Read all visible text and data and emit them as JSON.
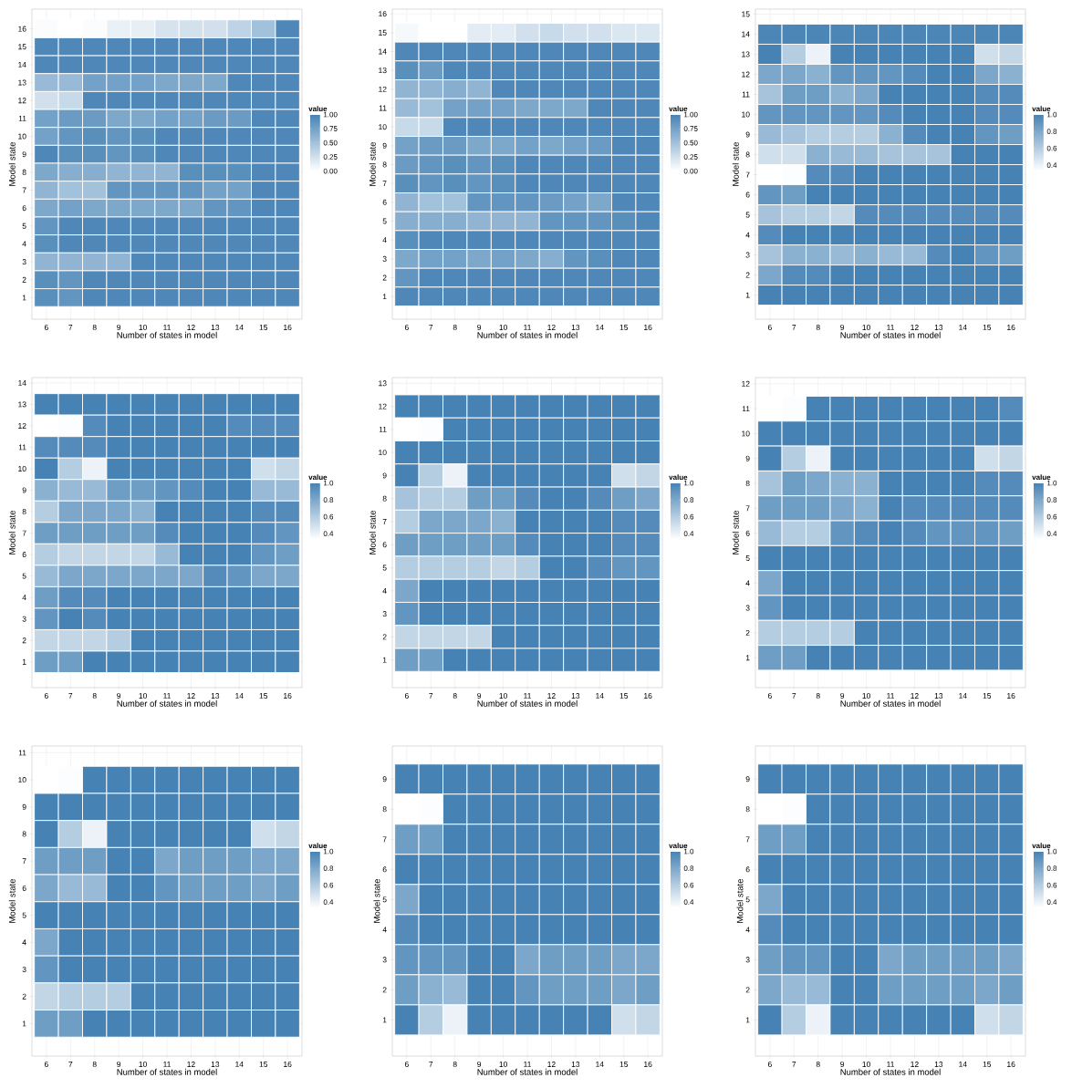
{
  "chart_data": [
    {
      "type": "heatmap",
      "xlabel": "Number of states in model",
      "ylabel": "Model state",
      "clabel": "value",
      "grid": true,
      "categories": [
        "6",
        "7",
        "8",
        "9",
        "10",
        "11",
        "12",
        "13",
        "14",
        "15",
        "16"
      ],
      "y_categories": [
        "16",
        "15",
        "14",
        "13",
        "12",
        "11",
        "10",
        "9",
        "8",
        "7",
        "6",
        "5",
        "4",
        "3",
        "2",
        "1"
      ],
      "cells": [
        [
          0.02,
          0,
          0.02,
          0.12,
          0.13,
          0.22,
          0.24,
          0.25,
          0.35,
          0.5,
          0.95
        ],
        [
          0.95,
          0.95,
          0.95,
          0.95,
          0.95,
          0.95,
          0.95,
          0.95,
          0.95,
          0.95,
          0.95
        ],
        [
          0.95,
          0.95,
          0.95,
          0.95,
          0.95,
          0.95,
          0.95,
          0.95,
          0.95,
          0.95,
          0.95
        ],
        [
          0.55,
          0.55,
          0.75,
          0.75,
          0.75,
          0.7,
          0.7,
          0.7,
          0.95,
          0.95,
          0.95
        ],
        [
          0.25,
          0.3,
          0.95,
          0.95,
          0.95,
          0.95,
          0.95,
          0.95,
          0.95,
          0.95,
          0.95
        ],
        [
          0.75,
          0.8,
          0.8,
          0.7,
          0.7,
          0.75,
          0.75,
          0.8,
          0.8,
          0.95,
          0.95
        ],
        [
          0.75,
          0.85,
          0.9,
          0.85,
          0.9,
          0.95,
          0.95,
          0.95,
          0.95,
          0.95,
          0.95
        ],
        [
          0.95,
          0.9,
          0.9,
          0.85,
          0.9,
          0.95,
          0.95,
          0.95,
          0.95,
          0.95,
          0.95
        ],
        [
          0.7,
          0.65,
          0.65,
          0.6,
          0.6,
          0.6,
          0.9,
          0.9,
          0.9,
          0.95,
          0.95
        ],
        [
          0.6,
          0.5,
          0.5,
          0.85,
          0.85,
          0.85,
          0.85,
          0.75,
          0.75,
          0.95,
          0.95
        ],
        [
          0.7,
          0.75,
          0.7,
          0.7,
          0.7,
          0.7,
          0.7,
          0.85,
          0.85,
          0.95,
          0.95
        ],
        [
          0.85,
          0.95,
          0.95,
          0.95,
          0.95,
          0.95,
          0.95,
          0.95,
          0.95,
          0.95,
          0.95
        ],
        [
          0.9,
          0.95,
          0.95,
          0.95,
          0.95,
          0.95,
          0.95,
          0.95,
          0.95,
          0.95,
          0.95
        ],
        [
          0.6,
          0.6,
          0.6,
          0.6,
          0.95,
          0.95,
          0.95,
          0.95,
          0.95,
          0.95,
          0.95
        ],
        [
          0.9,
          0.85,
          0.95,
          0.95,
          0.95,
          0.95,
          0.95,
          0.95,
          0.95,
          0.95,
          0.95
        ],
        [
          0.9,
          0.85,
          0.95,
          0.95,
          0.95,
          0.95,
          0.95,
          0.95,
          0.95,
          0.95,
          0.95
        ]
      ],
      "clim": [
        0,
        1
      ],
      "cticks": [
        {
          "value": 0,
          "label": "0.00"
        },
        {
          "value": 0.25,
          "label": "0.25"
        },
        {
          "value": 0.5,
          "label": "0.50"
        },
        {
          "value": 0.75,
          "label": "0.75"
        },
        {
          "value": 1,
          "label": "1.00"
        }
      ]
    },
    {
      "type": "heatmap",
      "xlabel": "Number of states in model",
      "ylabel": "Model state",
      "clabel": "value",
      "grid": true,
      "categories": [
        "6",
        "7",
        "8",
        "9",
        "10",
        "11",
        "12",
        "13",
        "14",
        "15",
        "16"
      ],
      "y_categories": [
        "16",
        "15",
        "14",
        "13",
        "12",
        "11",
        "10",
        "9",
        "8",
        "7",
        "6",
        "5",
        "4",
        "3",
        "2",
        "1"
      ],
      "cells": [
        [
          null,
          null,
          null,
          null,
          null,
          null,
          null,
          null,
          null,
          null,
          null
        ],
        [
          0.05,
          0,
          0,
          0.15,
          0.15,
          0.25,
          0.3,
          0.25,
          0.25,
          0.2,
          0.2
        ],
        [
          0.95,
          0.95,
          0.95,
          0.95,
          0.95,
          0.95,
          0.95,
          0.95,
          0.95,
          0.95,
          0.95
        ],
        [
          0.9,
          0.8,
          0.95,
          0.95,
          0.95,
          0.95,
          0.95,
          0.95,
          0.95,
          0.95,
          0.95
        ],
        [
          0.6,
          0.6,
          0.65,
          0.6,
          0.95,
          0.95,
          0.95,
          0.95,
          0.95,
          0.95,
          0.95
        ],
        [
          0.55,
          0.5,
          0.75,
          0.75,
          0.75,
          0.7,
          0.7,
          0.7,
          0.95,
          0.95,
          0.95
        ],
        [
          0.3,
          0.3,
          0.95,
          0.95,
          0.95,
          0.95,
          0.95,
          0.95,
          0.95,
          0.95,
          0.95
        ],
        [
          0.75,
          0.8,
          0.8,
          0.7,
          0.7,
          0.75,
          0.7,
          0.75,
          0.8,
          0.95,
          0.95
        ],
        [
          0.8,
          0.85,
          0.9,
          0.85,
          0.9,
          0.95,
          0.95,
          0.95,
          0.95,
          0.95,
          0.95
        ],
        [
          0.9,
          0.85,
          0.9,
          0.85,
          0.9,
          0.95,
          0.95,
          0.95,
          0.95,
          0.95,
          0.95
        ],
        [
          0.6,
          0.5,
          0.5,
          0.85,
          0.85,
          0.85,
          0.8,
          0.75,
          0.7,
          0.95,
          0.95
        ],
        [
          0.65,
          0.65,
          0.65,
          0.6,
          0.6,
          0.6,
          0.85,
          0.85,
          0.85,
          0.9,
          0.95
        ],
        [
          0.9,
          0.95,
          0.95,
          0.95,
          0.95,
          0.95,
          0.95,
          0.95,
          0.95,
          0.95,
          0.95
        ],
        [
          0.7,
          0.75,
          0.75,
          0.7,
          0.75,
          0.7,
          0.65,
          0.85,
          0.9,
          0.95,
          0.95
        ],
        [
          0.85,
          0.95,
          0.95,
          0.95,
          0.95,
          0.95,
          0.95,
          0.95,
          0.95,
          0.95,
          0.95
        ],
        [
          0.95,
          0.95,
          0.95,
          0.95,
          0.95,
          0.95,
          0.95,
          0.95,
          0.95,
          0.95,
          0.95
        ]
      ],
      "clim": [
        0,
        1
      ],
      "cticks": [
        {
          "value": 0,
          "label": "0.00"
        },
        {
          "value": 0.25,
          "label": "0.25"
        },
        {
          "value": 0.5,
          "label": "0.50"
        },
        {
          "value": 0.75,
          "label": "0.75"
        },
        {
          "value": 1,
          "label": "1.00"
        }
      ]
    },
    {
      "type": "heatmap",
      "xlabel": "Number of states in model",
      "ylabel": "Model state",
      "clabel": "value",
      "grid": true,
      "categories": [
        "6",
        "7",
        "8",
        "9",
        "10",
        "11",
        "12",
        "13",
        "14",
        "15",
        "16"
      ],
      "y_categories": [
        "15",
        "14",
        "13",
        "12",
        "11",
        "10",
        "9",
        "8",
        "7",
        "6",
        "5",
        "4",
        "3",
        "2",
        "1"
      ],
      "cells": [
        [
          null,
          null,
          null,
          null,
          null,
          null,
          null,
          null,
          null,
          null,
          null
        ],
        [
          0.98,
          0.98,
          0.98,
          0.98,
          0.98,
          0.98,
          0.98,
          0.98,
          0.98,
          0.98,
          0.98
        ],
        [
          1,
          0.6,
          0.4,
          1,
          1,
          1,
          1,
          1,
          1,
          0.5,
          0.55
        ],
        [
          0.8,
          0.8,
          0.75,
          0.9,
          0.9,
          0.9,
          0.95,
          1,
          1,
          0.8,
          0.75
        ],
        [
          0.65,
          0.85,
          0.85,
          0.75,
          0.8,
          1,
          1,
          1,
          1,
          0.95,
          0.95
        ],
        [
          0.9,
          0.9,
          0.9,
          0.9,
          0.9,
          0.95,
          1,
          1,
          1,
          0.95,
          0.95
        ],
        [
          0.7,
          0.65,
          0.6,
          0.6,
          0.6,
          0.75,
          0.95,
          1,
          1,
          0.9,
          0.85
        ],
        [
          0.5,
          0.5,
          0.75,
          0.7,
          0.7,
          0.65,
          0.65,
          0.65,
          1,
          1,
          1
        ],
        [
          0.33,
          0.34,
          0.95,
          0.95,
          1,
          1,
          1,
          1,
          1,
          1,
          1
        ],
        [
          0.9,
          0.85,
          1,
          1,
          1,
          1,
          1,
          1,
          1,
          1,
          1
        ],
        [
          0.65,
          0.6,
          0.6,
          0.55,
          0.95,
          0.95,
          0.95,
          0.95,
          0.95,
          0.95,
          0.95
        ],
        [
          0.95,
          1,
          1,
          1,
          1,
          1,
          1,
          1,
          1,
          1,
          1
        ],
        [
          0.65,
          0.75,
          0.75,
          0.7,
          0.75,
          0.7,
          0.7,
          0.95,
          1,
          0.9,
          0.85
        ],
        [
          0.8,
          0.95,
          0.95,
          1,
          1,
          1,
          1,
          1,
          1,
          1,
          1
        ],
        [
          1,
          1,
          1,
          1,
          1,
          1,
          1,
          1,
          1,
          1,
          1
        ]
      ],
      "clim": [
        0.33,
        1
      ],
      "cticks": [
        0.4,
        0.6,
        0.8,
        {
          "value": 1,
          "label": "1.0"
        }
      ]
    },
    {
      "type": "heatmap",
      "xlabel": "Number of states in model",
      "ylabel": "Model state",
      "clabel": "value",
      "grid": true,
      "categories": [
        "6",
        "7",
        "8",
        "9",
        "10",
        "11",
        "12",
        "13",
        "14",
        "15",
        "16"
      ],
      "y_categories": [
        "14",
        "13",
        "12",
        "11",
        "10",
        "9",
        "8",
        "7",
        "6",
        "5",
        "4",
        "3",
        "2",
        "1"
      ],
      "cells": [
        [
          null,
          null,
          null,
          null,
          null,
          null,
          null,
          null,
          null,
          null,
          null
        ],
        [
          1,
          1,
          1,
          1,
          1,
          1,
          1,
          1,
          1,
          1,
          1
        ],
        [
          0.33,
          0.34,
          0.95,
          1,
          1,
          1,
          1,
          1,
          0.95,
          0.95,
          0.95
        ],
        [
          0.95,
          0.95,
          0.95,
          1,
          1,
          1,
          1,
          1,
          1,
          1,
          1
        ],
        [
          1,
          0.6,
          0.4,
          1,
          1,
          1,
          1,
          1,
          1,
          0.5,
          0.55
        ],
        [
          0.75,
          0.7,
          0.7,
          0.85,
          0.85,
          0.9,
          0.95,
          1,
          1,
          0.7,
          0.7
        ],
        [
          0.6,
          0.8,
          0.8,
          0.8,
          0.75,
          1,
          1,
          1,
          1,
          0.95,
          0.95
        ],
        [
          0.85,
          0.85,
          0.85,
          0.85,
          0.85,
          0.95,
          1,
          1,
          1,
          0.95,
          0.9
        ],
        [
          0.6,
          0.55,
          0.55,
          0.55,
          0.55,
          0.7,
          1,
          1,
          1,
          0.9,
          0.85
        ],
        [
          0.7,
          0.8,
          0.8,
          0.8,
          0.8,
          0.8,
          0.8,
          0.95,
          0.9,
          0.8,
          0.8
        ],
        [
          0.85,
          0.95,
          0.95,
          1,
          1,
          1,
          1,
          1,
          1,
          1,
          1
        ],
        [
          0.9,
          1,
          0.95,
          1,
          1,
          1,
          1,
          1,
          1,
          1,
          1
        ],
        [
          0.55,
          0.55,
          0.55,
          0.6,
          1,
          1,
          1,
          1,
          1,
          1,
          1
        ],
        [
          0.85,
          0.85,
          1,
          1,
          1,
          1,
          1,
          1,
          1,
          1,
          1
        ]
      ],
      "clim": [
        0.33,
        1
      ],
      "cticks": [
        0.4,
        0.6,
        0.8,
        {
          "value": 1,
          "label": "1.0"
        }
      ]
    },
    {
      "type": "heatmap",
      "xlabel": "Number of states in model",
      "ylabel": "Model state",
      "clabel": "value",
      "grid": true,
      "categories": [
        "6",
        "7",
        "8",
        "9",
        "10",
        "11",
        "12",
        "13",
        "14",
        "15",
        "16"
      ],
      "y_categories": [
        "13",
        "12",
        "11",
        "10",
        "9",
        "8",
        "7",
        "6",
        "5",
        "4",
        "3",
        "2",
        "1"
      ],
      "cells": [
        [
          null,
          null,
          null,
          null,
          null,
          null,
          null,
          null,
          null,
          null,
          null
        ],
        [
          1,
          1,
          1,
          1,
          1,
          1,
          1,
          1,
          1,
          1,
          1
        ],
        [
          0.33,
          0.34,
          1,
          1,
          1,
          1,
          1,
          1,
          1,
          1,
          1
        ],
        [
          1,
          1,
          1,
          1,
          1,
          1,
          1,
          1,
          1,
          1,
          1
        ],
        [
          1,
          0.6,
          0.4,
          1,
          1,
          1,
          1,
          1,
          1,
          0.5,
          0.55
        ],
        [
          0.65,
          0.6,
          0.6,
          0.85,
          0.85,
          0.95,
          1,
          1,
          0.95,
          0.85,
          0.8
        ],
        [
          0.6,
          0.8,
          0.8,
          0.8,
          0.75,
          1,
          1,
          1,
          1,
          0.95,
          0.95
        ],
        [
          0.85,
          0.85,
          0.85,
          0.85,
          0.85,
          0.95,
          1,
          1,
          1,
          0.95,
          0.95
        ],
        [
          0.6,
          0.6,
          0.6,
          0.6,
          0.55,
          0.6,
          1,
          1,
          0.95,
          0.9,
          0.9
        ],
        [
          0.8,
          1,
          1,
          1,
          1,
          1,
          1,
          1,
          1,
          1,
          1
        ],
        [
          0.9,
          1,
          1,
          1,
          1,
          1,
          1,
          1,
          1,
          1,
          1
        ],
        [
          0.55,
          0.55,
          0.55,
          0.55,
          1,
          1,
          1,
          1,
          1,
          1,
          1
        ],
        [
          0.85,
          0.85,
          1,
          1,
          1,
          1,
          1,
          1,
          1,
          1,
          1
        ]
      ],
      "clim": [
        0.33,
        1
      ],
      "cticks": [
        0.4,
        0.6,
        0.8,
        {
          "value": 1,
          "label": "1.0"
        }
      ]
    },
    {
      "type": "heatmap",
      "xlabel": "Number of states in model",
      "ylabel": "Model state",
      "clabel": "value",
      "grid": true,
      "categories": [
        "6",
        "7",
        "8",
        "9",
        "10",
        "11",
        "12",
        "13",
        "14",
        "15",
        "16"
      ],
      "y_categories": [
        "12",
        "11",
        "10",
        "9",
        "8",
        "7",
        "6",
        "5",
        "4",
        "3",
        "2",
        "1"
      ],
      "cells": [
        [
          null,
          null,
          null,
          null,
          null,
          null,
          null,
          null,
          null,
          null,
          null
        ],
        [
          0.33,
          0.34,
          1,
          1,
          1,
          1,
          1,
          1,
          1,
          1,
          0.95
        ],
        [
          1,
          1,
          1,
          1,
          1,
          1,
          1,
          1,
          1,
          1,
          1
        ],
        [
          1,
          0.6,
          0.4,
          1,
          1,
          1,
          1,
          1,
          1,
          0.5,
          0.55
        ],
        [
          0.65,
          0.85,
          0.8,
          0.75,
          0.75,
          1,
          1,
          1,
          1,
          0.95,
          0.95
        ],
        [
          0.85,
          0.85,
          0.85,
          0.8,
          0.75,
          1,
          0.95,
          0.95,
          0.95,
          0.95,
          0.95
        ],
        [
          0.7,
          0.6,
          0.6,
          0.9,
          0.95,
          1,
          0.95,
          0.9,
          0.9,
          0.9,
          0.85
        ],
        [
          1,
          1,
          1,
          1,
          1,
          1,
          1,
          1,
          1,
          1,
          1
        ],
        [
          0.8,
          1,
          1,
          1,
          1,
          1,
          1,
          1,
          1,
          1,
          1
        ],
        [
          0.9,
          1,
          1,
          1,
          1,
          1,
          1,
          1,
          1,
          1,
          1
        ],
        [
          0.6,
          0.6,
          0.6,
          0.6,
          1,
          1,
          1,
          1,
          1,
          1,
          1
        ],
        [
          0.85,
          0.85,
          1,
          1,
          1,
          1,
          1,
          1,
          1,
          1,
          1
        ]
      ],
      "clim": [
        0.33,
        1
      ],
      "cticks": [
        0.4,
        0.6,
        0.8,
        {
          "value": 1,
          "label": "1.0"
        }
      ]
    },
    {
      "type": "heatmap",
      "xlabel": "Number of states in model",
      "ylabel": "Model state",
      "clabel": "value",
      "grid": true,
      "categories": [
        "6",
        "7",
        "8",
        "9",
        "10",
        "11",
        "12",
        "13",
        "14",
        "15",
        "16"
      ],
      "y_categories": [
        "11",
        "10",
        "9",
        "8",
        "7",
        "6",
        "5",
        "4",
        "3",
        "2",
        "1"
      ],
      "cells": [
        [
          null,
          null,
          null,
          null,
          null,
          null,
          null,
          null,
          null,
          null,
          null
        ],
        [
          0.33,
          0.34,
          1,
          1,
          1,
          1,
          1,
          1,
          1,
          1,
          1
        ],
        [
          1,
          1,
          1,
          1,
          1,
          1,
          1,
          1,
          1,
          1,
          1
        ],
        [
          1,
          0.6,
          0.4,
          1,
          1,
          1,
          1,
          1,
          1,
          0.5,
          0.55
        ],
        [
          0.85,
          0.85,
          0.85,
          1,
          1,
          0.8,
          0.85,
          0.85,
          0.85,
          0.8,
          0.8
        ],
        [
          0.8,
          0.7,
          0.7,
          1,
          1,
          0.9,
          0.85,
          0.85,
          0.85,
          0.8,
          0.85
        ],
        [
          1,
          1,
          1,
          1,
          1,
          1,
          1,
          1,
          1,
          1,
          1
        ],
        [
          0.8,
          1,
          1,
          1,
          1,
          1,
          1,
          1,
          1,
          1,
          1
        ],
        [
          0.9,
          1,
          1,
          1,
          1,
          1,
          1,
          1,
          1,
          1,
          1
        ],
        [
          0.55,
          0.6,
          0.6,
          0.6,
          1,
          1,
          1,
          1,
          1,
          1,
          1
        ],
        [
          0.85,
          0.85,
          1,
          1,
          1,
          1,
          1,
          1,
          1,
          1,
          1
        ]
      ],
      "clim": [
        0.33,
        1
      ],
      "cticks": [
        0.4,
        0.6,
        0.8,
        {
          "value": 1,
          "label": "1.0"
        }
      ]
    },
    {
      "type": "heatmap",
      "xlabel": "Number of states in model",
      "ylabel": "Model state",
      "clabel": "value",
      "grid": true,
      "categories": [
        "6",
        "7",
        "8",
        "9",
        "10",
        "11",
        "12",
        "13",
        "14",
        "15",
        "16"
      ],
      "y_categories": [
        "9",
        "8",
        "7",
        "6",
        "5",
        "4",
        "3",
        "2",
        "1"
      ],
      "cells": [
        [
          1,
          1,
          1,
          1,
          1,
          1,
          1,
          1,
          1,
          1,
          1
        ],
        [
          0.33,
          0.34,
          1,
          1,
          1,
          1,
          1,
          1,
          1,
          1,
          1
        ],
        [
          0.85,
          0.85,
          1,
          1,
          1,
          1,
          1,
          1,
          1,
          1,
          1
        ],
        [
          1,
          1,
          1,
          1,
          1,
          1,
          1,
          1,
          1,
          1,
          1
        ],
        [
          0.8,
          1,
          1,
          1,
          1,
          1,
          1,
          1,
          1,
          1,
          1
        ],
        [
          0.95,
          1,
          1,
          1,
          1,
          1,
          1,
          1,
          1,
          1,
          1
        ],
        [
          0.9,
          0.9,
          0.9,
          1,
          1,
          0.8,
          0.85,
          0.85,
          0.85,
          0.8,
          0.8
        ],
        [
          0.85,
          0.75,
          0.7,
          1,
          1,
          0.9,
          0.85,
          0.85,
          0.85,
          0.8,
          0.85
        ],
        [
          1,
          0.6,
          0.4,
          1,
          1,
          1,
          1,
          1,
          1,
          0.5,
          0.55
        ]
      ],
      "clim": [
        0.33,
        1
      ],
      "cticks": [
        0.4,
        0.6,
        0.8,
        {
          "value": 1,
          "label": "1.0"
        }
      ]
    },
    {
      "type": "heatmap",
      "xlabel": "Number of states in model",
      "ylabel": "Model state",
      "clabel": "value",
      "grid": true,
      "categories": [
        "6",
        "7",
        "8",
        "9",
        "10",
        "11",
        "12",
        "13",
        "14",
        "15",
        "16"
      ],
      "y_categories": [
        "9",
        "8",
        "7",
        "6",
        "5",
        "4",
        "3",
        "2",
        "1"
      ],
      "cells": [
        [
          1,
          1,
          1,
          1,
          1,
          1,
          1,
          1,
          1,
          1,
          1
        ],
        [
          0.33,
          0.34,
          1,
          1,
          1,
          1,
          1,
          1,
          1,
          1,
          1
        ],
        [
          0.85,
          0.85,
          1,
          1,
          1,
          1,
          1,
          1,
          1,
          1,
          1
        ],
        [
          1,
          1,
          1,
          1,
          1,
          1,
          1,
          1,
          1,
          1,
          1
        ],
        [
          0.8,
          1,
          1,
          1,
          1,
          1,
          1,
          1,
          1,
          1,
          1
        ],
        [
          0.95,
          1,
          1,
          1,
          1,
          1,
          1,
          1,
          1,
          1,
          1
        ],
        [
          0.85,
          0.9,
          0.9,
          1,
          1,
          0.8,
          0.85,
          0.85,
          0.85,
          0.85,
          0.8
        ],
        [
          0.8,
          0.7,
          0.7,
          1,
          1,
          0.85,
          0.85,
          0.85,
          0.85,
          0.8,
          0.85
        ],
        [
          1,
          0.6,
          0.4,
          1,
          1,
          1,
          1,
          1,
          1,
          0.5,
          0.55
        ]
      ],
      "clim": [
        0.33,
        1
      ],
      "cticks": [
        0.4,
        0.6,
        0.8,
        {
          "value": 1,
          "label": "1.0"
        }
      ]
    }
  ]
}
